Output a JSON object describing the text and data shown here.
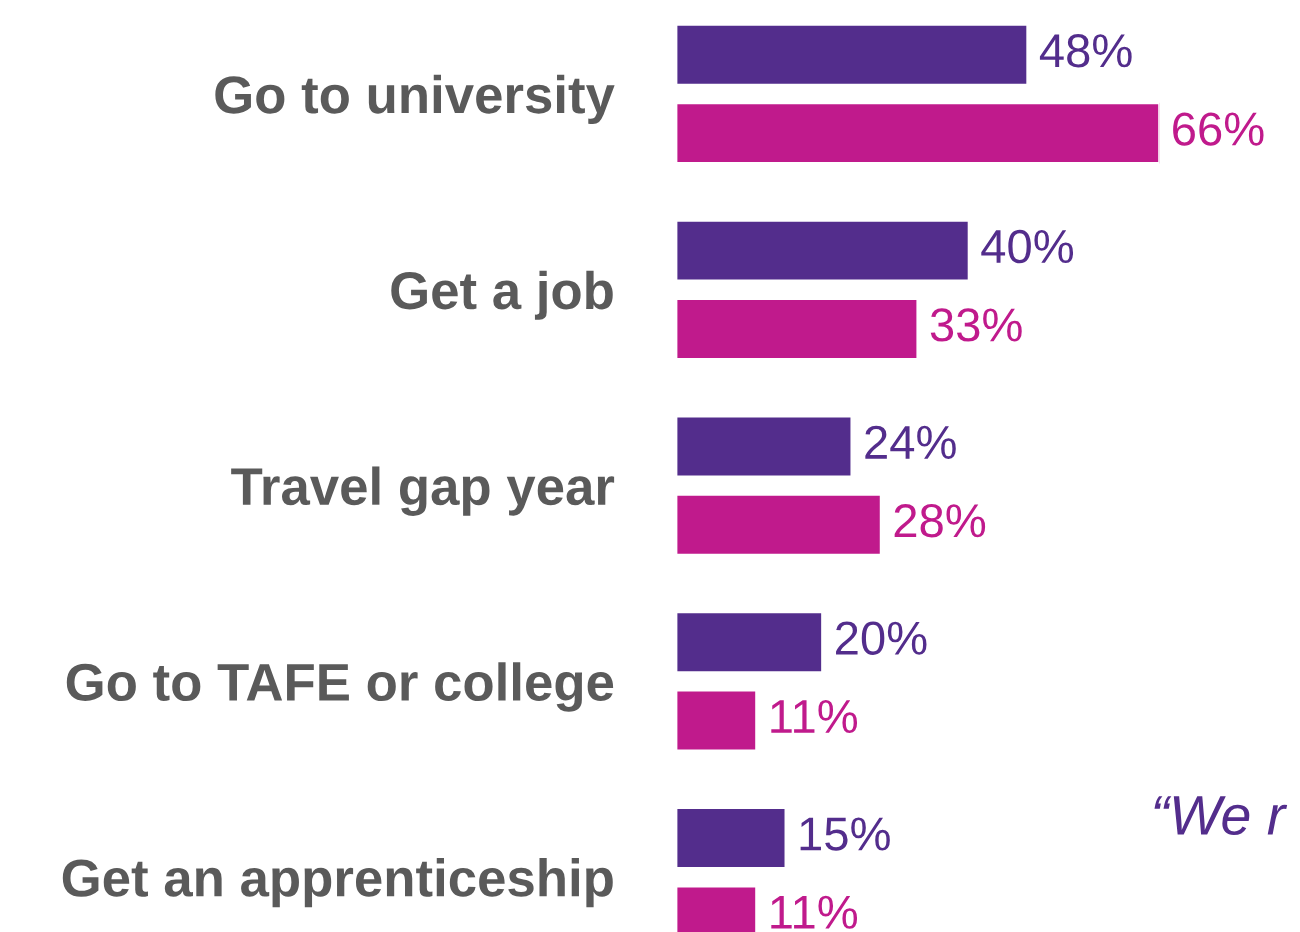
{
  "chart_data": {
    "type": "bar",
    "orientation": "horizontal",
    "categories": [
      "Go to university",
      "Get a job",
      "Travel gap year",
      "Go to TAFE or college",
      "Get an apprenticeship"
    ],
    "series": [
      {
        "color": "#532d8c",
        "values": [
          48,
          40,
          24,
          20,
          15
        ],
        "value_labels": [
          "48%",
          "40%",
          "24%",
          "20%",
          "15%"
        ]
      },
      {
        "color": "#c01a8c",
        "values": [
          66,
          33,
          28,
          11,
          11
        ],
        "value_labels": [
          "66%",
          "33%",
          "28%",
          "11%",
          "11%"
        ]
      }
    ],
    "tick_labels": "y",
    "grid": false,
    "legend": false,
    "annotations": [
      "“We r"
    ]
  }
}
